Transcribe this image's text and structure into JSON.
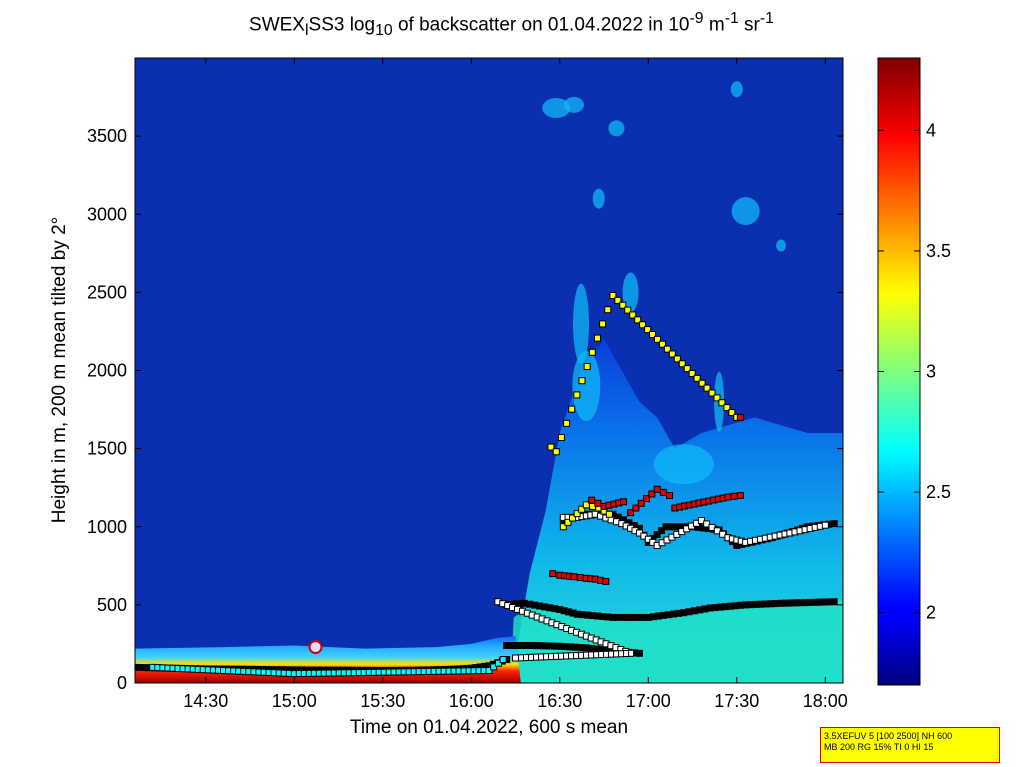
{
  "chart_data": {
    "type": "heatmap",
    "title": {
      "t1": "SWEX",
      "t1sub": "l",
      "t2": "SS3 log",
      "t2sub": "10",
      "t3": " of backscatter on 01.04.2022 in 10",
      "t3sup": "-9",
      "t4": " m",
      "t4sup": "-1",
      "t5": " sr",
      "t5sup": "-1"
    },
    "xlabel": "Time on 01.04.2022, 600 s mean",
    "ylabel": "Height in m, 200 m mean tilted by 2°",
    "x_range_hours": [
      14.1,
      18.1
    ],
    "ylim": [
      0,
      4000
    ],
    "x_ticks": [
      {
        "label": "14:30",
        "hour": 14.5
      },
      {
        "label": "15:00",
        "hour": 15.0
      },
      {
        "label": "15:30",
        "hour": 15.5
      },
      {
        "label": "16:00",
        "hour": 16.0
      },
      {
        "label": "16:30",
        "hour": 16.5
      },
      {
        "label": "17:00",
        "hour": 17.0
      },
      {
        "label": "17:30",
        "hour": 17.5
      },
      {
        "label": "18:00",
        "hour": 18.0
      }
    ],
    "y_ticks": [
      0,
      500,
      1000,
      1500,
      2000,
      2500,
      3000,
      3500
    ],
    "colorbar": {
      "range": [
        1.7,
        4.3
      ],
      "ticks": [
        2,
        2.5,
        3,
        3.5,
        4
      ],
      "colormap": "jet"
    },
    "marker_series": [
      {
        "points": [
          [
            14.1,
            100
          ],
          [
            14.3,
            95
          ],
          [
            14.5,
            90
          ],
          [
            14.7,
            88
          ],
          [
            14.9,
            85
          ],
          [
            15.1,
            83
          ],
          [
            15.3,
            82
          ],
          [
            15.5,
            80
          ],
          [
            15.7,
            82
          ],
          [
            15.9,
            88
          ],
          [
            16.0,
            95
          ],
          [
            16.1,
            110
          ],
          [
            16.2,
            150
          ]
        ],
        "fill": "#000000"
      },
      {
        "points": [
          [
            16.2,
            240
          ],
          [
            16.35,
            240
          ],
          [
            16.5,
            235
          ],
          [
            16.65,
            225
          ],
          [
            16.8,
            205
          ],
          [
            16.95,
            190
          ]
        ],
        "fill": "#000000"
      },
      {
        "points": [
          [
            16.2,
            500
          ],
          [
            16.3,
            510
          ],
          [
            16.5,
            470
          ],
          [
            16.6,
            440
          ],
          [
            16.8,
            420
          ],
          [
            17.0,
            420
          ],
          [
            17.2,
            450
          ],
          [
            17.35,
            480
          ],
          [
            17.55,
            500
          ],
          [
            17.75,
            510
          ],
          [
            18.05,
            520
          ]
        ],
        "fill": "#000000"
      },
      {
        "points": [
          [
            16.52,
            1040
          ],
          [
            16.65,
            1080
          ],
          [
            16.8,
            1080
          ],
          [
            16.95,
            990
          ],
          [
            17.0,
            900
          ],
          [
            17.1,
            1000
          ],
          [
            17.25,
            1000
          ],
          [
            17.4,
            980
          ],
          [
            17.5,
            880
          ],
          [
            17.7,
            930
          ],
          [
            17.9,
            1000
          ],
          [
            18.05,
            1020
          ]
        ],
        "fill": "#000000"
      },
      {
        "points": [
          [
            16.52,
            1060
          ],
          [
            16.6,
            1060
          ],
          [
            16.7,
            1080
          ],
          [
            16.85,
            1020
          ],
          [
            16.95,
            960
          ],
          [
            17.05,
            880
          ],
          [
            17.3,
            1040
          ],
          [
            17.45,
            930
          ],
          [
            17.55,
            900
          ],
          [
            17.8,
            960
          ],
          [
            18.0,
            1010
          ]
        ],
        "fill": "#ffffff"
      },
      {
        "points": [
          [
            16.52,
            1000
          ],
          [
            16.65,
            1140
          ],
          [
            16.72,
            1120
          ],
          [
            16.78,
            1080
          ]
        ],
        "fill": "#ffff00"
      },
      {
        "points": [
          [
            16.68,
            1170
          ],
          [
            16.75,
            1130
          ],
          [
            16.86,
            1160
          ],
          [
            16.9,
            1090
          ],
          [
            17.05,
            1240
          ],
          [
            17.12,
            1200
          ],
          [
            17.15,
            1120
          ],
          [
            17.45,
            1190
          ],
          [
            17.52,
            1200
          ]
        ],
        "fill": "#e00000"
      },
      {
        "points": [
          [
            16.46,
            700
          ],
          [
            16.5,
            690
          ],
          [
            16.58,
            680
          ],
          [
            16.65,
            670
          ],
          [
            16.7,
            665
          ],
          [
            16.76,
            650
          ]
        ],
        "fill": "#e00000"
      },
      {
        "points": [
          [
            16.45,
            1510
          ],
          [
            16.48,
            1480
          ],
          [
            16.8,
            2480
          ],
          [
            17.5,
            1700
          ]
        ],
        "fill": "#ffff00"
      },
      {
        "points": [
          [
            17.52,
            1700
          ]
        ],
        "fill": "#e00000"
      },
      {
        "points": [
          [
            16.15,
            520
          ],
          [
            16.9,
            190
          ],
          [
            16.25,
            160
          ]
        ],
        "fill": "#ffffff"
      },
      {
        "points": [
          [
            14.2,
            100
          ],
          [
            15.0,
            60
          ],
          [
            16.1,
            80
          ],
          [
            16.18,
            150
          ]
        ],
        "fill": "#00ffff"
      }
    ]
  },
  "infobox": {
    "line1": "3.5XEFUV 5 [100 2500] NH 600",
    "line2": "MB 200 RG 15% TI 0 HI 15"
  }
}
